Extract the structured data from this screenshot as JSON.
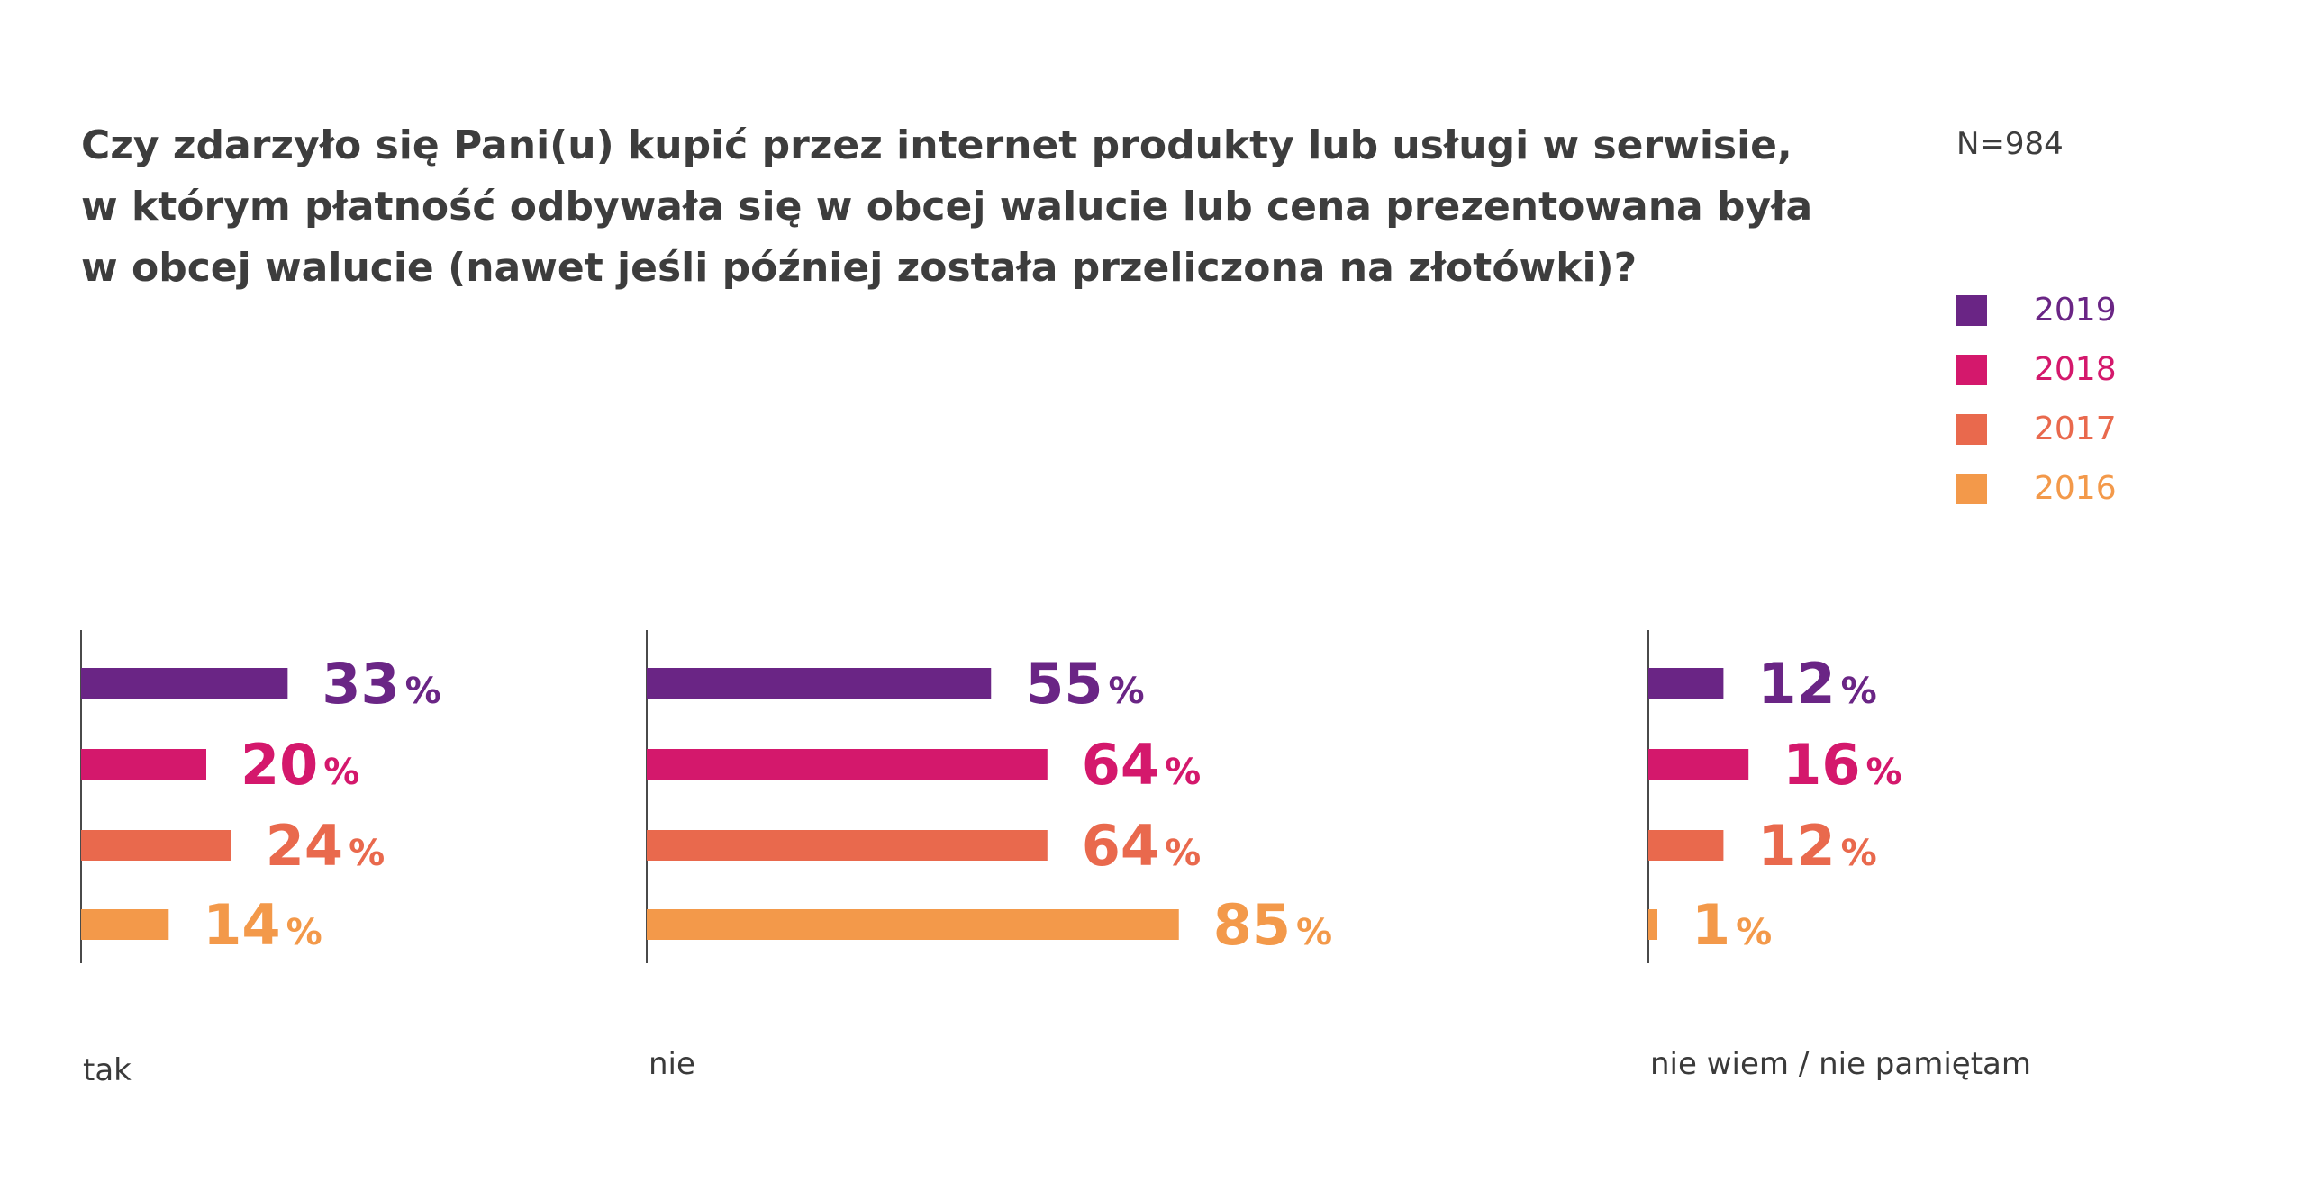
{
  "title_lines": [
    "Czy zdarzyło się Pani(u) kupić przez internet produkty lub usługi w serwisie,",
    "w którym płatność odbywała się w obcej walucie lub cena prezentowana była",
    "w obcej walucie (nawet jeśli później została przeliczona na złotówki)?"
  ],
  "sample_size": "N=984",
  "chart_data": {
    "type": "bar",
    "orientation": "horizontal",
    "title": "Czy zdarzyło się Pani(u) kupić przez internet produkty lub usługi w serwisie, w którym płatność odbywała się w obcej walucie lub cena prezentowana była w obcej walucie (nawet jeśli później została przeliczona na złotówki)?",
    "categories": [
      "tak",
      "nie",
      "nie wiem / nie pamiętam"
    ],
    "unit": "%",
    "xlim": [
      0,
      100
    ],
    "grid": false,
    "legend_position": "top-right",
    "series": [
      {
        "name": "2019",
        "color": "#6a2585",
        "values": [
          33,
          55,
          12
        ]
      },
      {
        "name": "2018",
        "color": "#d4186c",
        "values": [
          20,
          64,
          16
        ]
      },
      {
        "name": "2017",
        "color": "#e9694d",
        "values": [
          24,
          64,
          12
        ]
      },
      {
        "name": "2016",
        "color": "#f3994a",
        "values": [
          14,
          85,
          1
        ]
      }
    ]
  }
}
